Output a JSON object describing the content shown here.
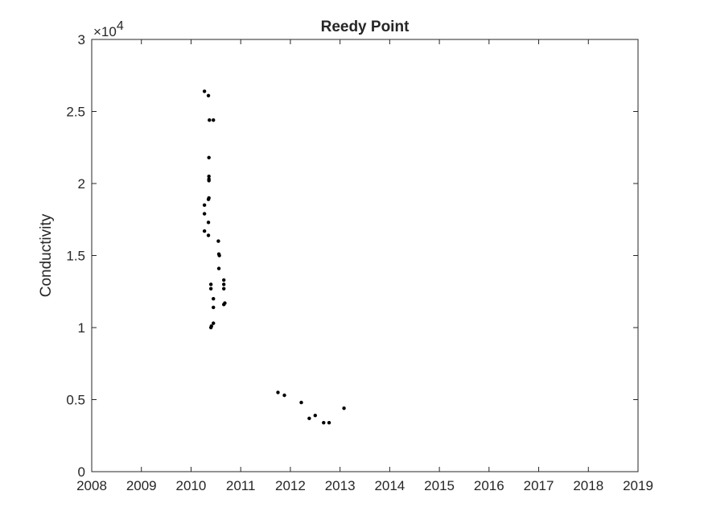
{
  "chart_data": {
    "type": "scatter",
    "title": "Reedy Point",
    "xlabel": "",
    "ylabel": "Conductivity",
    "y_exponent_label": "×10",
    "y_exponent_power": "4",
    "xlim": [
      2008,
      2019
    ],
    "ylim": [
      0,
      30000
    ],
    "x_ticks": [
      "2008",
      "2009",
      "2010",
      "2011",
      "2012",
      "2013",
      "2014",
      "2015",
      "2016",
      "2017",
      "2018",
      "2019"
    ],
    "y_ticks": [
      "0",
      "0.5",
      "1",
      "1.5",
      "2",
      "2.5",
      "3"
    ],
    "grid": false,
    "marker_color": "#000000",
    "points": [
      {
        "x": 2010.27,
        "y": 26400
      },
      {
        "x": 2010.35,
        "y": 26100
      },
      {
        "x": 2010.37,
        "y": 24400
      },
      {
        "x": 2010.45,
        "y": 24400
      },
      {
        "x": 2010.36,
        "y": 21800
      },
      {
        "x": 2010.36,
        "y": 20500
      },
      {
        "x": 2010.36,
        "y": 20300
      },
      {
        "x": 2010.36,
        "y": 20200
      },
      {
        "x": 2010.36,
        "y": 19000
      },
      {
        "x": 2010.35,
        "y": 18900
      },
      {
        "x": 2010.27,
        "y": 18500
      },
      {
        "x": 2010.27,
        "y": 17900
      },
      {
        "x": 2010.35,
        "y": 17300
      },
      {
        "x": 2010.27,
        "y": 16700
      },
      {
        "x": 2010.35,
        "y": 16400
      },
      {
        "x": 2010.55,
        "y": 16000
      },
      {
        "x": 2010.56,
        "y": 15100
      },
      {
        "x": 2010.57,
        "y": 15000
      },
      {
        "x": 2010.56,
        "y": 14100
      },
      {
        "x": 2010.66,
        "y": 13300
      },
      {
        "x": 2010.4,
        "y": 13000
      },
      {
        "x": 2010.66,
        "y": 13000
      },
      {
        "x": 2010.4,
        "y": 12700
      },
      {
        "x": 2010.66,
        "y": 12700
      },
      {
        "x": 2010.45,
        "y": 12000
      },
      {
        "x": 2010.68,
        "y": 11700
      },
      {
        "x": 2010.66,
        "y": 11600
      },
      {
        "x": 2010.45,
        "y": 11400
      },
      {
        "x": 2010.45,
        "y": 10300
      },
      {
        "x": 2010.41,
        "y": 10100
      },
      {
        "x": 2010.4,
        "y": 10000
      },
      {
        "x": 2011.75,
        "y": 5500
      },
      {
        "x": 2011.88,
        "y": 5300
      },
      {
        "x": 2012.22,
        "y": 4800
      },
      {
        "x": 2012.38,
        "y": 3700
      },
      {
        "x": 2012.5,
        "y": 3900
      },
      {
        "x": 2012.67,
        "y": 3400
      },
      {
        "x": 2012.78,
        "y": 3400
      },
      {
        "x": 2013.08,
        "y": 4400
      }
    ]
  }
}
